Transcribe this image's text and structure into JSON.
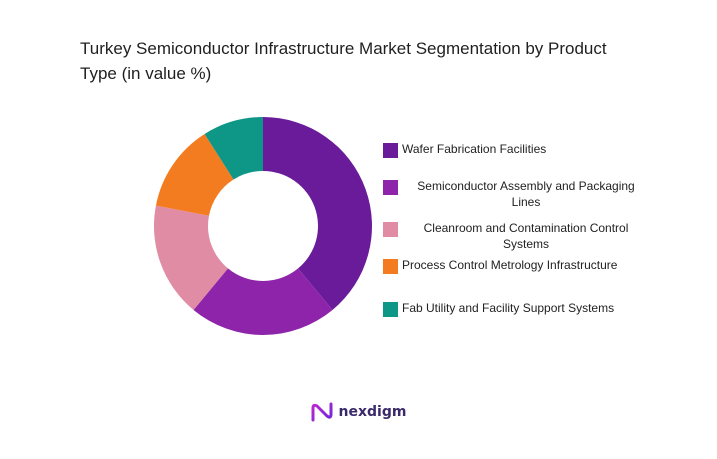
{
  "chart_data": {
    "type": "pie",
    "title": "Turkey Semiconductor Infrastructure Market Segmentation by Product Type (in value %)",
    "donut": true,
    "legend_position": "right",
    "slices": [
      {
        "label": "Wafer Fabrication Facilities",
        "value": 39,
        "color": "#6a1b9a"
      },
      {
        "label": "Semiconductor Assembly and Packaging Lines",
        "value": 22,
        "color": "#8e24aa"
      },
      {
        "label": "Cleanroom and Contamination Control Systems",
        "value": 17,
        "color": "#e08ca4"
      },
      {
        "label": "Process Control Metrology Infrastructure",
        "value": 13,
        "color": "#f47c20"
      },
      {
        "label": "Fab Utility and Facility Support Systems",
        "value": 9,
        "color": "#0e9686"
      }
    ]
  },
  "brand": {
    "name": "nexdigm",
    "logo_icon": "nexdigm-logo-icon"
  }
}
